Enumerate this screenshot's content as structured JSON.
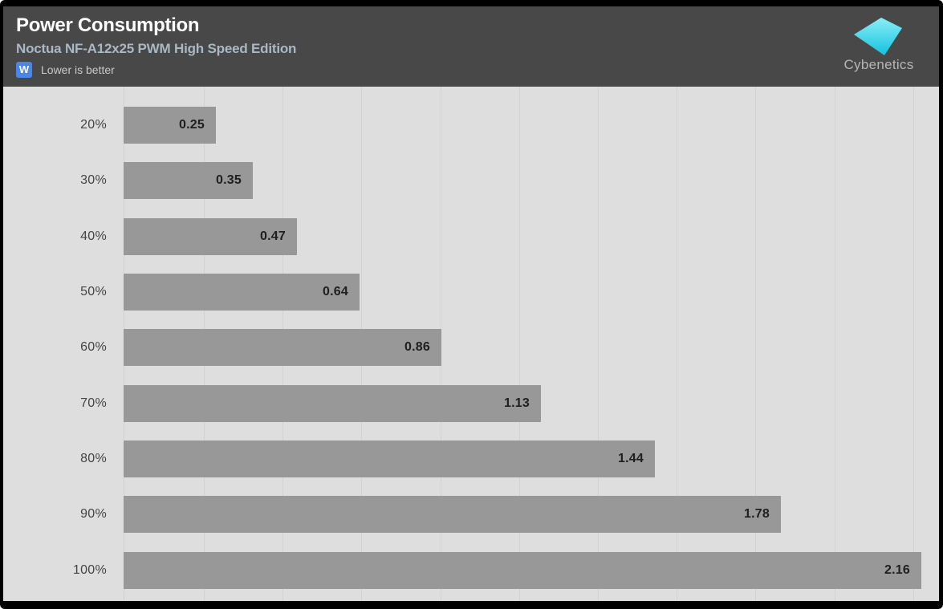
{
  "header": {
    "title": "Power Consumption",
    "subtitle": "Noctua NF-A12x25 PWM High Speed Edition",
    "unit_badge": "W",
    "note": "Lower is better",
    "brand": "Cybenetics"
  },
  "colors": {
    "frame": "#000000",
    "header_bg": "#484848",
    "plot_bg": "#dedede",
    "gridline": "#d2d2d2",
    "bar": "#989898",
    "title_text": "#ffffff",
    "subtitle_text": "#a9b8c4",
    "note_text": "#c9c9c9",
    "badge_bg": "#4a86e8",
    "category_text": "#444444",
    "value_text": "#1f1f1f",
    "brand_text": "#b6b6b6",
    "logo_cyan_top": "#8beef7",
    "logo_cyan_bottom": "#12c2e0"
  },
  "chart_data": {
    "type": "bar",
    "orientation": "horizontal",
    "title": "Power Consumption",
    "subtitle": "Noctua NF-A12x25 PWM High Speed Edition",
    "unit": "W",
    "note": "Lower is better",
    "categories": [
      "20%",
      "30%",
      "40%",
      "50%",
      "60%",
      "70%",
      "80%",
      "90%",
      "100%"
    ],
    "values": [
      0.25,
      0.35,
      0.47,
      0.64,
      0.86,
      1.13,
      1.44,
      1.78,
      2.16
    ],
    "xlim": [
      0,
      2.2
    ],
    "grid": "vertical",
    "gridline_count": 10,
    "legend": "none",
    "value_labels": "inside bar end, 2 decimals"
  }
}
